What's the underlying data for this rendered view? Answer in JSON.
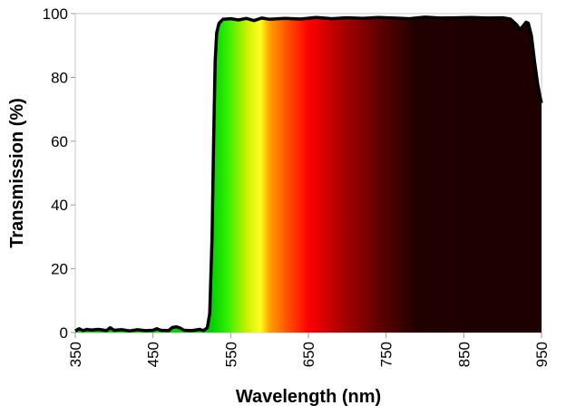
{
  "chart_data": {
    "type": "area",
    "title": "",
    "xlabel": "Wavelength (nm)",
    "ylabel": "Transmission (%)",
    "xlim": [
      350,
      950
    ],
    "ylim": [
      0,
      100
    ],
    "xticks": [
      350,
      450,
      550,
      650,
      750,
      850,
      950
    ],
    "yticks": [
      0,
      20,
      40,
      60,
      80,
      100
    ],
    "grid": false,
    "fill": "visible-spectrum color gradient under curve",
    "gradient_stops": [
      {
        "nm": 525,
        "color": "#00d000"
      },
      {
        "nm": 545,
        "color": "#30ee00"
      },
      {
        "nm": 570,
        "color": "#c8f000"
      },
      {
        "nm": 588,
        "color": "#ffff20"
      },
      {
        "nm": 600,
        "color": "#ffa000"
      },
      {
        "nm": 620,
        "color": "#ff5a00"
      },
      {
        "nm": 650,
        "color": "#ff0000"
      },
      {
        "nm": 690,
        "color": "#b00000"
      },
      {
        "nm": 740,
        "color": "#600000"
      },
      {
        "nm": 790,
        "color": "#200000"
      },
      {
        "nm": 950,
        "color": "#1e0000"
      }
    ],
    "series": [
      {
        "x": [
          350,
          355,
          360,
          365,
          370,
          380,
          390,
          395,
          400,
          410,
          420,
          430,
          440,
          450,
          455,
          460,
          470,
          475,
          480,
          485,
          490,
          500,
          510,
          515,
          520,
          523,
          526,
          528,
          530,
          532,
          535,
          540,
          550,
          560,
          570,
          580,
          590,
          600,
          620,
          640,
          660,
          680,
          700,
          720,
          740,
          760,
          780,
          800,
          820,
          840,
          860,
          880,
          900,
          910,
          918,
          922,
          926,
          930,
          933,
          937,
          941,
          945,
          948,
          950
        ],
        "y": [
          0.5,
          1.2,
          0.6,
          1.0,
          0.8,
          1.0,
          0.6,
          1.5,
          0.7,
          0.9,
          0.5,
          0.9,
          0.6,
          0.7,
          1.2,
          0.7,
          0.6,
          1.6,
          1.8,
          1.4,
          0.7,
          0.6,
          1.0,
          0.6,
          1.5,
          6,
          30,
          60,
          85,
          94,
          97,
          98.2,
          98.4,
          98.0,
          98.5,
          97.8,
          98.6,
          98.2,
          98.5,
          98.3,
          98.8,
          98.4,
          98.7,
          98.5,
          98.8,
          98.6,
          98.4,
          98.9,
          98.6,
          98.7,
          98.8,
          98.6,
          98.7,
          98.3,
          96.5,
          95,
          96,
          97.3,
          97,
          93,
          85,
          78,
          74,
          72
        ]
      }
    ]
  }
}
